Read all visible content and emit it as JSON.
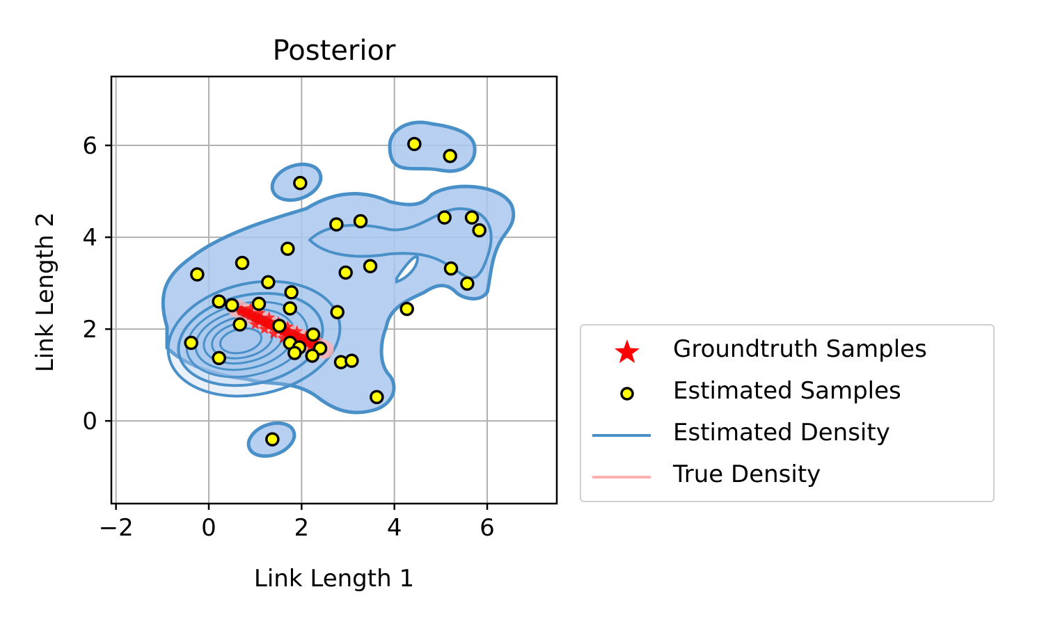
{
  "chart_data": {
    "type": "scatter",
    "title": "Posterior",
    "xlabel": "Link Length 1",
    "ylabel": "Link Length 2",
    "xlim": [
      -2.1,
      7.5
    ],
    "ylim": [
      -1.8,
      7.5
    ],
    "xticks": [
      -2,
      0,
      2,
      4,
      6
    ],
    "yticks": [
      0,
      2,
      4,
      6
    ],
    "xtick_labels": [
      "−2",
      "0",
      "2",
      "4",
      "6"
    ],
    "ytick_labels": [
      "0",
      "2",
      "4",
      "6"
    ],
    "grid": true,
    "legend_position": "outside-right-bottom",
    "colors": {
      "groundtruth": "#ff0000",
      "estimated_fill": "#ffff00",
      "estimated_edge": "#000000",
      "estimated_density": "#4a90c8",
      "density_fill": "#aac8ee",
      "true_density": "#ffb0b0"
    },
    "series": [
      {
        "name": "Groundtruth Samples",
        "marker": "star",
        "points": [
          [
            0.7,
            2.4
          ],
          [
            0.8,
            2.35
          ],
          [
            0.9,
            2.3
          ],
          [
            1.0,
            2.25
          ],
          [
            1.1,
            2.2
          ],
          [
            1.2,
            2.15
          ],
          [
            1.3,
            2.1
          ],
          [
            1.4,
            2.05
          ],
          [
            1.5,
            2.0
          ],
          [
            1.6,
            1.95
          ],
          [
            1.7,
            1.9
          ],
          [
            1.8,
            1.85
          ],
          [
            1.9,
            1.8
          ],
          [
            2.0,
            1.75
          ],
          [
            2.1,
            1.7
          ],
          [
            2.2,
            1.65
          ],
          [
            0.9,
            2.45
          ],
          [
            1.1,
            2.35
          ],
          [
            1.3,
            2.25
          ],
          [
            1.5,
            2.15
          ],
          [
            1.7,
            2.05
          ],
          [
            1.9,
            1.95
          ],
          [
            2.1,
            1.85
          ],
          [
            2.3,
            1.75
          ],
          [
            1.0,
            2.1
          ],
          [
            1.2,
            2.0
          ],
          [
            1.4,
            1.9
          ],
          [
            1.6,
            1.8
          ],
          [
            1.8,
            1.7
          ],
          [
            2.0,
            1.6
          ]
        ]
      },
      {
        "name": "Estimated Samples",
        "marker": "circle",
        "points": [
          [
            4.43,
            6.03
          ],
          [
            5.2,
            5.77
          ],
          [
            1.97,
            5.18
          ],
          [
            2.75,
            4.28
          ],
          [
            3.27,
            4.35
          ],
          [
            5.08,
            4.43
          ],
          [
            5.67,
            4.43
          ],
          [
            5.83,
            4.15
          ],
          [
            1.7,
            3.75
          ],
          [
            0.72,
            3.44
          ],
          [
            3.48,
            3.37
          ],
          [
            5.22,
            3.32
          ],
          [
            2.95,
            3.23
          ],
          [
            -0.25,
            3.19
          ],
          [
            1.28,
            3.02
          ],
          [
            5.57,
            2.99
          ],
          [
            1.78,
            2.8
          ],
          [
            0.22,
            2.6
          ],
          [
            0.5,
            2.52
          ],
          [
            1.08,
            2.55
          ],
          [
            1.75,
            2.45
          ],
          [
            4.27,
            2.44
          ],
          [
            2.77,
            2.37
          ],
          [
            0.67,
            2.1
          ],
          [
            1.52,
            2.07
          ],
          [
            2.25,
            1.88
          ],
          [
            1.75,
            1.7
          ],
          [
            1.95,
            1.6
          ],
          [
            2.4,
            1.58
          ],
          [
            -0.38,
            1.7
          ],
          [
            1.85,
            1.48
          ],
          [
            2.23,
            1.42
          ],
          [
            0.22,
            1.37
          ],
          [
            2.85,
            1.28
          ],
          [
            3.08,
            1.31
          ],
          [
            3.62,
            0.52
          ],
          [
            1.37,
            -0.4
          ]
        ]
      }
    ],
    "legend": [
      {
        "label": "Groundtruth Samples",
        "type": "star"
      },
      {
        "label": "Estimated Samples",
        "type": "circle"
      },
      {
        "label": "Estimated Density",
        "type": "line-blue"
      },
      {
        "label": "True Density",
        "type": "line-pink"
      }
    ]
  }
}
